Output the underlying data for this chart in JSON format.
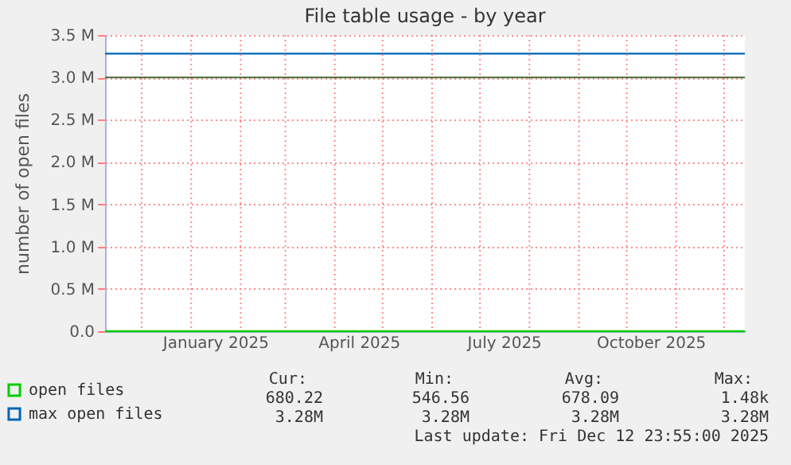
{
  "chart_data": {
    "type": "line",
    "title": "File table usage - by year",
    "ylabel": "number of open files",
    "x": [
      "2024-11-08",
      "2025-12-14"
    ],
    "series": [
      {
        "name": "open files",
        "color": "#00cc00",
        "values": [
          680,
          680
        ]
      },
      {
        "name": "max open files",
        "color": "#0066b3",
        "values": [
          3280000,
          3280000
        ]
      }
    ],
    "xlim": [
      "2024-11-08",
      "2025-12-14"
    ],
    "xticks": [
      {
        "value": "2024-12-01",
        "label": null
      },
      {
        "value": "2025-01-01",
        "label": null
      },
      {
        "value": "2025-01-16",
        "label": "January 2025"
      },
      {
        "value": "2025-02-01",
        "label": null
      },
      {
        "value": "2025-03-01",
        "label": null
      },
      {
        "value": "2025-04-01",
        "label": null
      },
      {
        "value": "2025-04-16",
        "label": "April 2025"
      },
      {
        "value": "2025-05-01",
        "label": null
      },
      {
        "value": "2025-06-01",
        "label": null
      },
      {
        "value": "2025-07-01",
        "label": null
      },
      {
        "value": "2025-07-16",
        "label": "July 2025"
      },
      {
        "value": "2025-08-01",
        "label": null
      },
      {
        "value": "2025-09-01",
        "label": null
      },
      {
        "value": "2025-10-01",
        "label": null
      },
      {
        "value": "2025-10-16",
        "label": "October 2025"
      },
      {
        "value": "2025-11-01",
        "label": null
      },
      {
        "value": "2025-12-01",
        "label": null
      }
    ],
    "ylim": [
      0,
      3500000
    ],
    "yticks": [
      {
        "value": 0,
        "label": "0.0"
      },
      {
        "value": 500000,
        "label": "0.5 M"
      },
      {
        "value": 1000000,
        "label": "1.0 M"
      },
      {
        "value": 1500000,
        "label": "1.5 M"
      },
      {
        "value": 2000000,
        "label": "2.0 M"
      },
      {
        "value": 2500000,
        "label": "2.5 M"
      },
      {
        "value": 3000000,
        "label": "3.0 M"
      },
      {
        "value": 3500000,
        "label": "3.5 M"
      }
    ],
    "ref_lines": [
      {
        "axis": "y",
        "value": 3000000,
        "label": null,
        "color": "#4a6a3a"
      }
    ],
    "grid": true,
    "legend": "bottom left",
    "annotations": [
      "Cur:",
      "Min:",
      "Avg:",
      "Max:",
      "680.22",
      "546.56",
      "678.09",
      "1.48k",
      "3.28M",
      "3.28M",
      "3.28M",
      "3.28M",
      "Last update: Fri Dec 12 23:55:00 2025"
    ]
  }
}
